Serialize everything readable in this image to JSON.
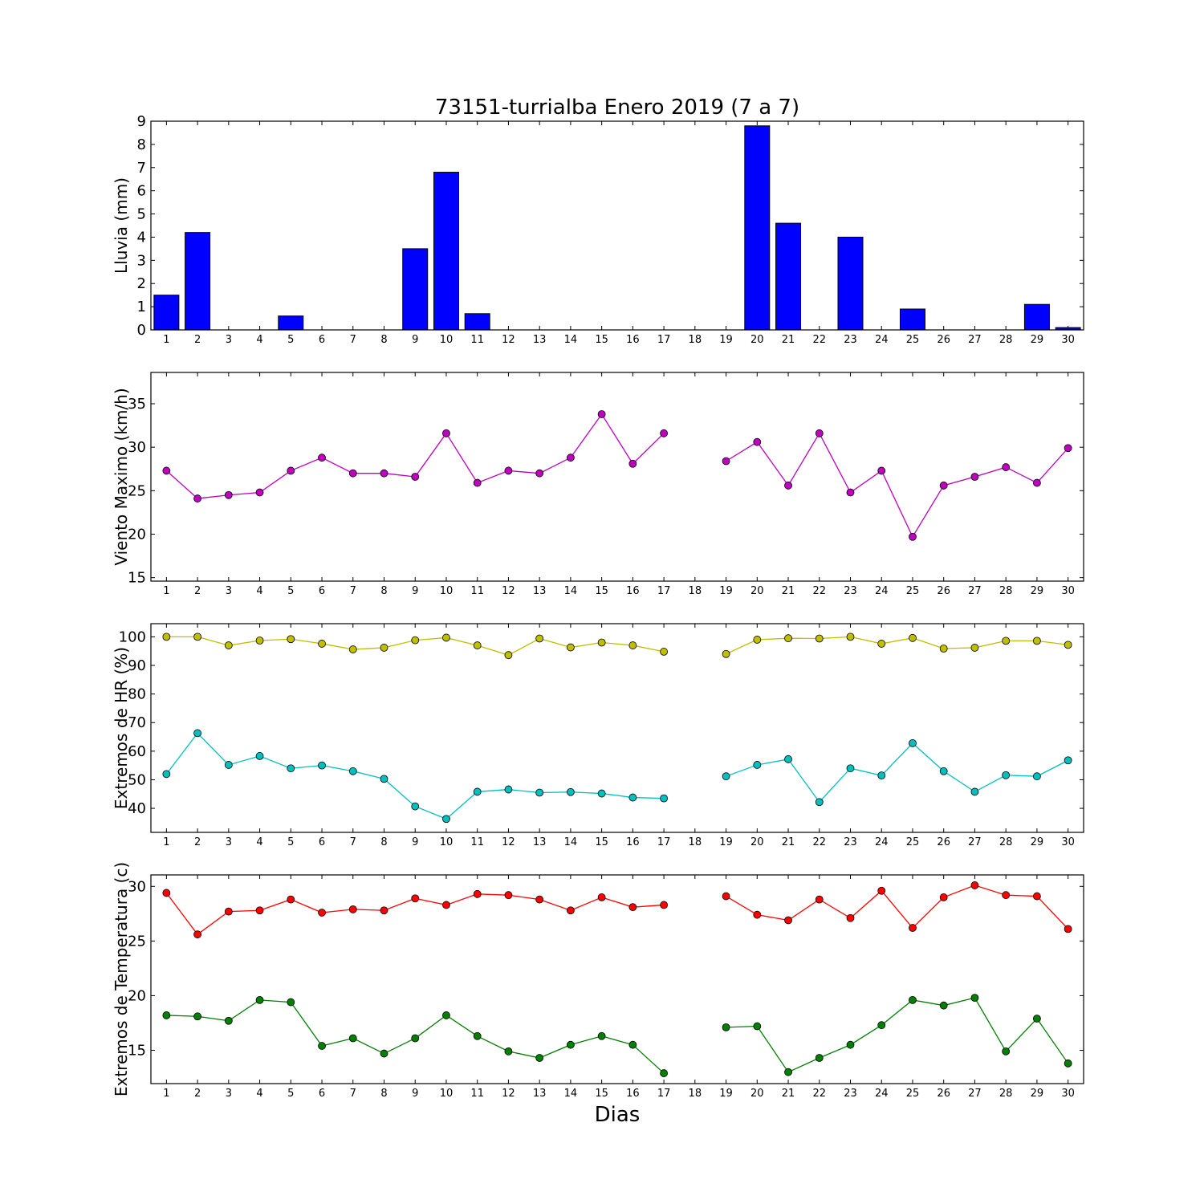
{
  "figure": {
    "title": "73151-turrialba Enero 2019  (7 a 7)",
    "xlabel": "Dias"
  },
  "chart_data": [
    {
      "type": "bar",
      "ylabel": "Lluvia (mm)",
      "ylim": [
        0,
        9
      ],
      "yticks": [
        0,
        1,
        2,
        3,
        4,
        5,
        6,
        7,
        8,
        9
      ],
      "categories": [
        1,
        2,
        3,
        4,
        5,
        6,
        7,
        8,
        9,
        10,
        11,
        12,
        13,
        14,
        15,
        16,
        17,
        18,
        19,
        20,
        21,
        22,
        23,
        24,
        25,
        26,
        27,
        28,
        29,
        30
      ],
      "series": [
        {
          "color": "#0000ff",
          "values": [
            1.5,
            4.2,
            0,
            0,
            0.6,
            0,
            0,
            0,
            3.5,
            6.8,
            0.7,
            0,
            0,
            0,
            0,
            0,
            0,
            0,
            0,
            8.8,
            4.6,
            0,
            4.0,
            0,
            0.9,
            0,
            0,
            0,
            1.1,
            0.1
          ]
        }
      ]
    },
    {
      "type": "line",
      "ylabel": "Viento Maximo (km/h)",
      "ylim": [
        14.6,
        38.6
      ],
      "yticks": [
        15,
        20,
        25,
        30,
        35
      ],
      "x": [
        1,
        2,
        3,
        4,
        5,
        6,
        7,
        8,
        9,
        10,
        11,
        12,
        13,
        14,
        15,
        16,
        17,
        18,
        19,
        20,
        21,
        22,
        23,
        24,
        25,
        26,
        27,
        28,
        29,
        30
      ],
      "series": [
        {
          "color": "#bf00bf",
          "values": [
            27.3,
            24.1,
            24.5,
            24.8,
            27.3,
            28.8,
            27.0,
            27.0,
            26.6,
            31.6,
            25.9,
            27.3,
            27.0,
            28.8,
            33.8,
            28.1,
            31.6,
            null,
            28.4,
            30.6,
            25.6,
            31.6,
            24.8,
            27.3,
            19.7,
            25.6,
            26.6,
            27.7,
            25.9,
            29.9
          ]
        }
      ]
    },
    {
      "type": "line",
      "ylabel": "Extremos de HR (%)",
      "ylim": [
        31.6,
        104.6
      ],
      "yticks": [
        40,
        50,
        60,
        70,
        80,
        90,
        100
      ],
      "x": [
        1,
        2,
        3,
        4,
        5,
        6,
        7,
        8,
        9,
        10,
        11,
        12,
        13,
        14,
        15,
        16,
        17,
        18,
        19,
        20,
        21,
        22,
        23,
        24,
        25,
        26,
        27,
        28,
        29,
        30
      ],
      "series": [
        {
          "color": "#bfbf00",
          "values": [
            100,
            100,
            97,
            98.7,
            99.2,
            97.6,
            95.6,
            96.2,
            98.8,
            99.7,
            97,
            93.6,
            99.4,
            96.3,
            98,
            97,
            94.8,
            null,
            94,
            99,
            99.5,
            99.4,
            100,
            97.6,
            99.6,
            95.9,
            96.2,
            98.6,
            98.6,
            97.2
          ]
        },
        {
          "color": "#00bfbf",
          "values": [
            52,
            66.3,
            55.2,
            58.3,
            54,
            55,
            53,
            50.3,
            40.7,
            36.3,
            45.8,
            46.6,
            45.5,
            45.7,
            45.2,
            43.8,
            43.5,
            null,
            51.2,
            55.2,
            57.2,
            42.2,
            54,
            51.5,
            62.8,
            53,
            45.8,
            51.6,
            51.2,
            56.8
          ]
        }
      ]
    },
    {
      "type": "line",
      "ylabel": "Extremos de Temperatura (c)",
      "ylim": [
        11.95,
        31.05
      ],
      "yticks": [
        15,
        20,
        25,
        30
      ],
      "x": [
        1,
        2,
        3,
        4,
        5,
        6,
        7,
        8,
        9,
        10,
        11,
        12,
        13,
        14,
        15,
        16,
        17,
        18,
        19,
        20,
        21,
        22,
        23,
        24,
        25,
        26,
        27,
        28,
        29,
        30
      ],
      "series": [
        {
          "color": "#ff0000",
          "values": [
            29.4,
            25.6,
            27.7,
            27.8,
            28.8,
            27.6,
            27.9,
            27.8,
            28.9,
            28.3,
            29.3,
            29.2,
            28.8,
            27.8,
            29.0,
            28.1,
            28.3,
            null,
            29.1,
            27.4,
            26.9,
            28.8,
            27.1,
            29.6,
            26.2,
            29.0,
            30.1,
            29.2,
            29.1,
            26.1
          ]
        },
        {
          "color": "#007f00",
          "values": [
            18.2,
            18.1,
            17.7,
            19.6,
            19.4,
            15.4,
            16.1,
            14.7,
            16.1,
            18.2,
            16.3,
            14.9,
            14.3,
            15.5,
            16.3,
            15.5,
            12.9,
            null,
            17.1,
            17.2,
            13.0,
            14.3,
            15.5,
            17.3,
            19.6,
            19.1,
            19.8,
            14.9,
            17.9,
            13.8
          ]
        }
      ]
    }
  ]
}
